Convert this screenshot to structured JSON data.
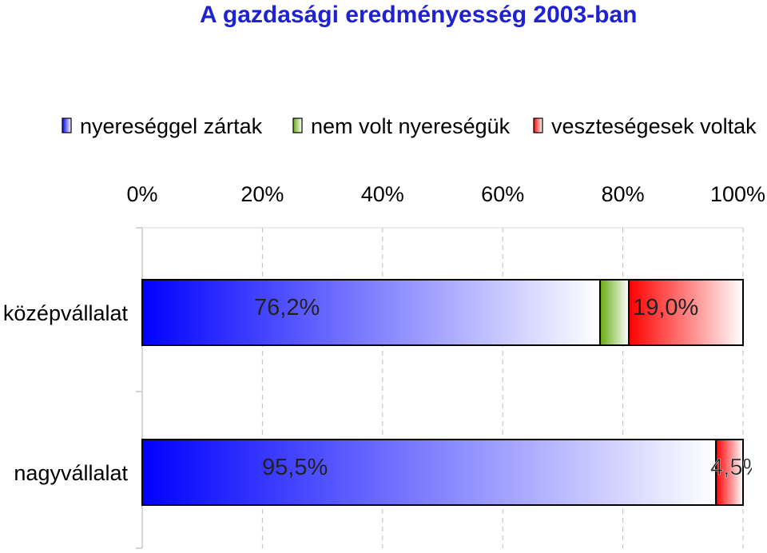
{
  "chart_data": {
    "type": "bar",
    "orientation": "horizontal",
    "stacked": "percent",
    "title": "A gazdasági eredményesség 2003-ban",
    "xlabel": "",
    "ylabel": "",
    "xlim": [
      0,
      100
    ],
    "x_ticks": [
      "0%",
      "20%",
      "40%",
      "60%",
      "80%",
      "100%"
    ],
    "x_tick_values": [
      0,
      20,
      40,
      60,
      80,
      100
    ],
    "grid": "vertical dashed",
    "legend_position": "top",
    "categories": [
      "középvállalat",
      "nagyvállalat"
    ],
    "series": [
      {
        "name": "nyereséggel zártak",
        "values": [
          76.2,
          95.5
        ],
        "labels": [
          "76,2%",
          "95,5%"
        ],
        "color": "#0000ff"
      },
      {
        "name": "nem volt nyereségük",
        "values": [
          4.8,
          0
        ],
        "labels": [
          "",
          ""
        ],
        "color": "#66aa11"
      },
      {
        "name": "veszteségesek voltak",
        "values": [
          19.0,
          4.5
        ],
        "labels": [
          "19,0%",
          "4,5%"
        ],
        "color": "#ff0000"
      }
    ]
  }
}
